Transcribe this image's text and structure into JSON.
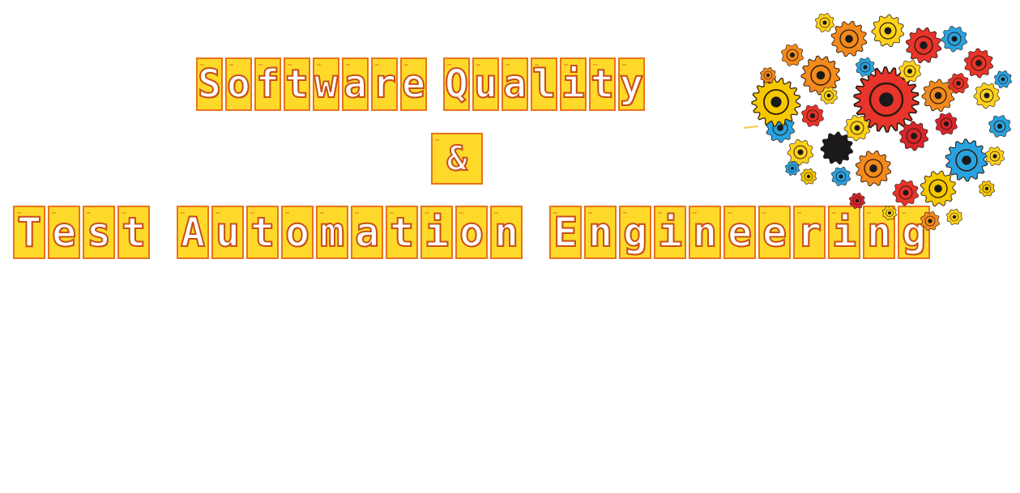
{
  "banner": {
    "line1": [
      "Software",
      "Quality"
    ],
    "line2": [
      "&"
    ],
    "line3": [
      "Test",
      "Automation",
      "Engineering"
    ]
  },
  "colors": {
    "tile_fill": "#ffd92a",
    "tile_border": "#e8741a",
    "letter_fill": "#ffffff",
    "letter_outline": "#c8501a"
  },
  "logo": {
    "icon": "gears-brain-icon",
    "gear_colors": [
      "#e8342a",
      "#f28a1c",
      "#ffd21a",
      "#29a3e0",
      "#f5c800",
      "#d7262b",
      "#1a1a1a"
    ]
  }
}
